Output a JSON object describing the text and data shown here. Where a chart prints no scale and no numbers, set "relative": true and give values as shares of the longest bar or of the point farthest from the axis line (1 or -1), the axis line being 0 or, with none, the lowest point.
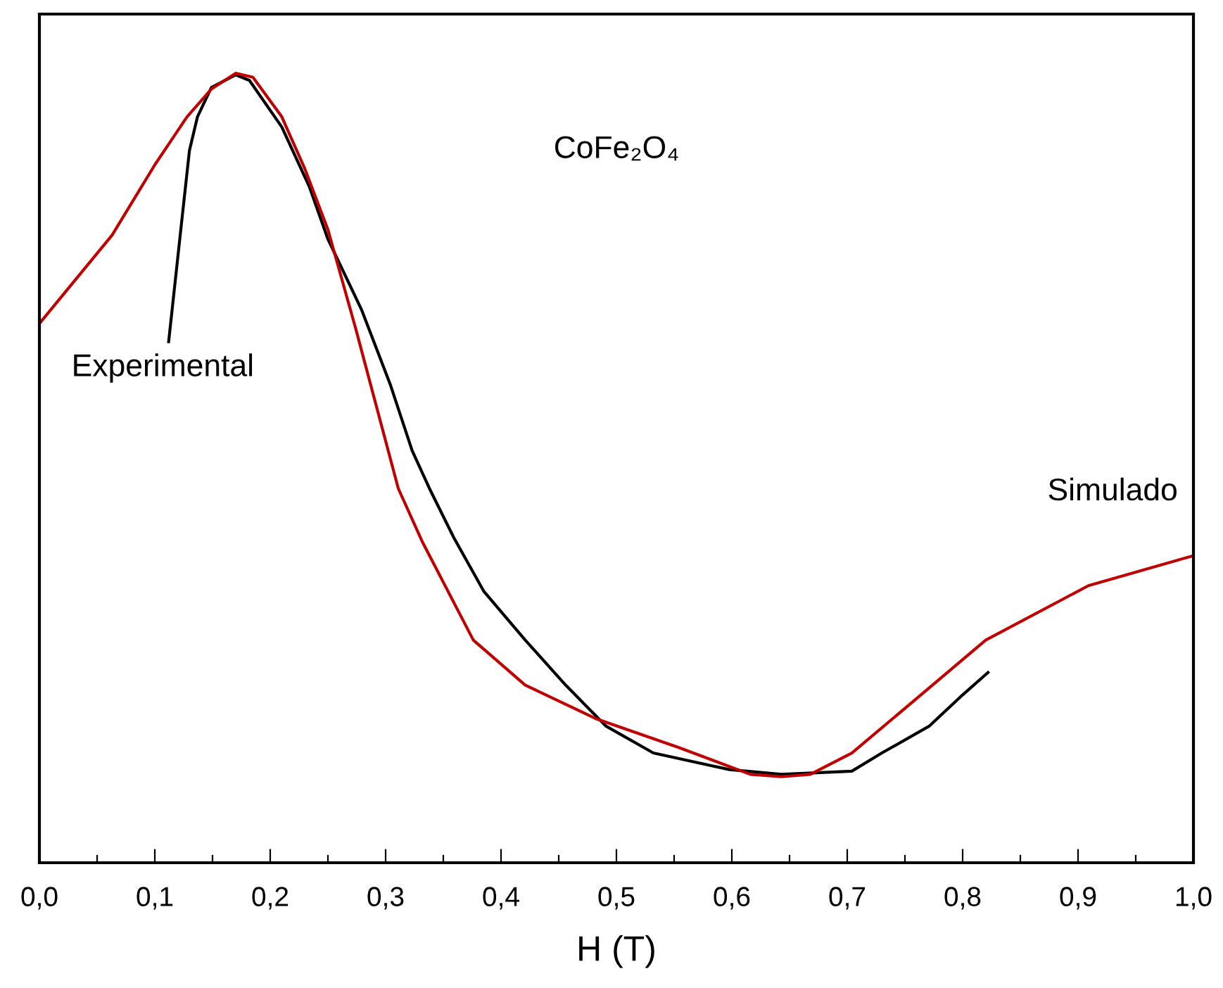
{
  "chart_data": {
    "type": "line",
    "relative": true,
    "xlabel": "H (T)",
    "annotations": [
      "CoFe₂O₄"
    ],
    "xlim": [
      0,
      1.0
    ],
    "xticks": [
      {
        "value": 0,
        "label": "0,0"
      },
      {
        "value": 0.05,
        "label": null
      },
      {
        "value": 0.1,
        "label": "0,1"
      },
      {
        "value": 0.15,
        "label": null
      },
      {
        "value": 0.2,
        "label": "0,2"
      },
      {
        "value": 0.25,
        "label": null
      },
      {
        "value": 0.3,
        "label": "0,3"
      },
      {
        "value": 0.35,
        "label": null
      },
      {
        "value": 0.4,
        "label": "0,4"
      },
      {
        "value": 0.45,
        "label": null
      },
      {
        "value": 0.5,
        "label": "0,5"
      },
      {
        "value": 0.55,
        "label": null
      },
      {
        "value": 0.6,
        "label": "0,6"
      },
      {
        "value": 0.65,
        "label": null
      },
      {
        "value": 0.7,
        "label": "0,7"
      },
      {
        "value": 0.75,
        "label": null
      },
      {
        "value": 0.8,
        "label": "0,8"
      },
      {
        "value": 0.85,
        "label": null
      },
      {
        "value": 0.9,
        "label": "0,9"
      },
      {
        "value": 0.95,
        "label": null
      },
      {
        "value": 1.0,
        "label": "1,0"
      }
    ],
    "tick_labels": "x",
    "grid": false,
    "marker": "none",
    "line_style": "solid",
    "series": [
      {
        "name": "Experimental",
        "color": "#000000",
        "x": [
          0.112,
          0.122,
          0.13,
          0.137,
          0.149,
          0.17,
          0.182,
          0.21,
          0.234,
          0.25,
          0.279,
          0.304,
          0.323,
          0.338,
          0.359,
          0.385,
          0.421,
          0.456,
          0.491,
          0.532,
          0.598,
          0.643,
          0.704,
          0.73,
          0.771,
          0.798,
          0.822
        ],
        "values": [
          0.66,
          0.795,
          0.902,
          0.945,
          0.982,
          0.998,
          0.991,
          0.932,
          0.856,
          0.79,
          0.701,
          0.606,
          0.522,
          0.474,
          0.412,
          0.344,
          0.282,
          0.225,
          0.173,
          0.139,
          0.118,
          0.112,
          0.116,
          0.139,
          0.173,
          0.21,
          0.241
        ]
      },
      {
        "name": "Simulado",
        "color": "#c00000",
        "x": [
          0,
          0.063,
          0.1,
          0.128,
          0.149,
          0.17,
          0.185,
          0.21,
          0.23,
          0.25,
          0.274,
          0.311,
          0.332,
          0.376,
          0.421,
          0.483,
          0.554,
          0.616,
          0.643,
          0.668,
          0.704,
          0.752,
          0.82,
          0.909,
          1.0
        ],
        "values": [
          0.683,
          0.795,
          0.884,
          0.945,
          0.98,
          1.0,
          0.995,
          0.945,
          0.879,
          0.802,
          0.677,
          0.474,
          0.406,
          0.282,
          0.225,
          0.182,
          0.146,
          0.112,
          0.109,
          0.112,
          0.139,
          0.198,
          0.282,
          0.351,
          0.389
        ]
      }
    ]
  }
}
